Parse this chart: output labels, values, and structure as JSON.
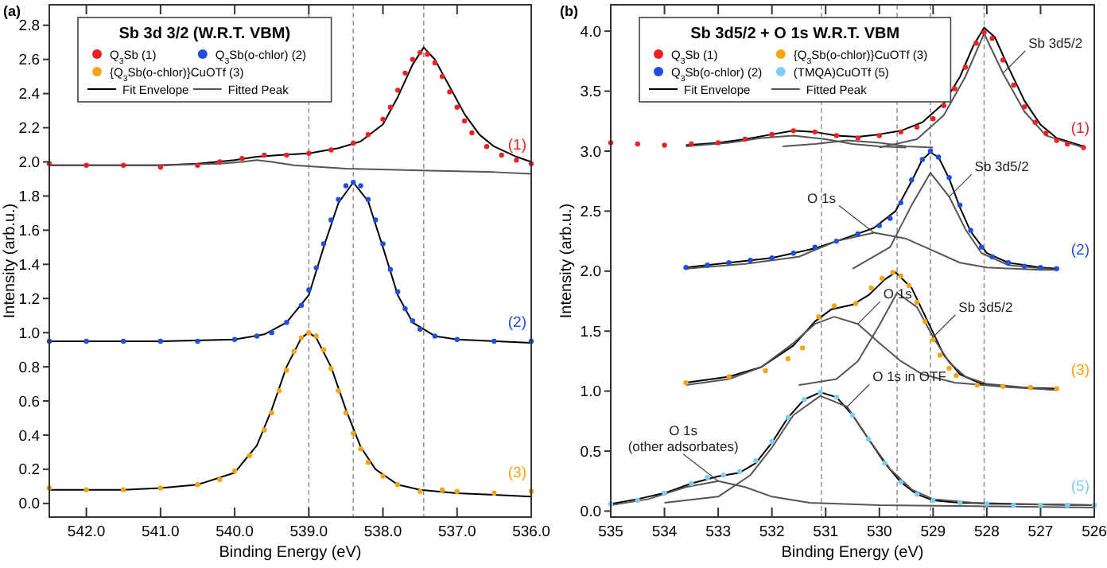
{
  "chart_data": [
    {
      "type": "scatter",
      "title": "(a)",
      "legend_title": "Sb 3d 3/2 (W.R.T. VBM)",
      "xlabel": "Binding Energy (eV)",
      "ylabel": "Intensity (arb.u.)",
      "xlim": [
        542.5,
        536.0
      ],
      "ylim": [
        -0.08,
        2.92
      ],
      "xticks": [
        {
          "value": 542,
          "label": "542.0"
        },
        {
          "value": 541,
          "label": "541.0"
        },
        {
          "value": 540,
          "label": "540.0"
        },
        {
          "value": 539,
          "label": "539.0"
        },
        {
          "value": 538,
          "label": "538.0"
        },
        {
          "value": 537,
          "label": "537.0"
        },
        {
          "value": 536,
          "label": "536.0"
        }
      ],
      "yticks": [
        {
          "value": 0,
          "label": "0.0"
        },
        {
          "value": 0.2,
          "label": "0.2"
        },
        {
          "value": 0.4,
          "label": "0.4"
        },
        {
          "value": 0.6,
          "label": "0.6"
        },
        {
          "value": 0.8,
          "label": "0.8"
        },
        {
          "value": 1,
          "label": "1.0"
        },
        {
          "value": 1.2,
          "label": "1.2"
        },
        {
          "value": 1.4,
          "label": "1.4"
        },
        {
          "value": 1.6,
          "label": "1.6"
        },
        {
          "value": 1.8,
          "label": "1.8"
        },
        {
          "value": 2,
          "label": "2.0"
        },
        {
          "value": 2.2,
          "label": "2.2"
        },
        {
          "value": 2.4,
          "label": "2.4"
        },
        {
          "value": 2.6,
          "label": "2.6"
        },
        {
          "value": 2.8,
          "label": "2.8"
        }
      ],
      "grid": false,
      "legend": "top left",
      "series": [
        {
          "name": "Q$_{3}$Sb (1)",
          "marker": "circle",
          "color": "#ee2222",
          "x": [
            542.5,
            542.0,
            541.5,
            541.0,
            540.5,
            540.2,
            539.9,
            539.6,
            539.3,
            539.0,
            538.7,
            538.4,
            538.2,
            538.0,
            537.9,
            537.8,
            537.7,
            537.6,
            537.5,
            537.4,
            537.3,
            537.2,
            537.1,
            537.0,
            536.9,
            536.8,
            536.6,
            536.4,
            536.2,
            536.0
          ],
          "values": [
            1.99,
            1.98,
            1.98,
            1.97,
            1.98,
            2.0,
            2.02,
            2.04,
            2.04,
            2.05,
            2.07,
            2.11,
            2.16,
            2.25,
            2.32,
            2.42,
            2.52,
            2.6,
            2.64,
            2.63,
            2.58,
            2.5,
            2.41,
            2.32,
            2.24,
            2.17,
            2.09,
            2.04,
            2.01,
            1.99
          ]
        },
        {
          "name": "Q$_{3}$Sb(o-chlor) (2)",
          "marker": "circle",
          "color": "#1f4fe0",
          "x": [
            542.5,
            542.0,
            541.5,
            541.0,
            540.5,
            540.0,
            539.7,
            539.5,
            539.3,
            539.1,
            539.0,
            538.9,
            538.8,
            538.7,
            538.6,
            538.5,
            538.4,
            538.3,
            538.2,
            538.1,
            538.0,
            537.9,
            537.8,
            537.7,
            537.6,
            537.5,
            537.3,
            537.0,
            536.5,
            536.0
          ],
          "values": [
            0.95,
            0.95,
            0.95,
            0.95,
            0.95,
            0.96,
            0.98,
            1.0,
            1.06,
            1.16,
            1.25,
            1.38,
            1.52,
            1.66,
            1.78,
            1.86,
            1.88,
            1.86,
            1.78,
            1.66,
            1.52,
            1.37,
            1.24,
            1.14,
            1.07,
            1.02,
            0.98,
            0.96,
            0.95,
            0.95
          ]
        },
        {
          "name": "{Q$_{3}$Sb(o-chlor)}CuOTf (3)",
          "marker": "circle",
          "color": "#f5a512",
          "x": [
            542.5,
            542.0,
            541.5,
            541.0,
            540.5,
            540.2,
            540.0,
            539.8,
            539.6,
            539.5,
            539.4,
            539.3,
            539.2,
            539.1,
            539.0,
            538.9,
            538.8,
            538.7,
            538.6,
            538.5,
            538.4,
            538.3,
            538.2,
            538.0,
            537.8,
            537.5,
            537.2,
            537.0,
            536.5,
            536.0
          ],
          "values": [
            0.09,
            0.08,
            0.08,
            0.09,
            0.11,
            0.14,
            0.19,
            0.28,
            0.43,
            0.53,
            0.66,
            0.78,
            0.89,
            0.97,
            1.0,
            0.98,
            0.9,
            0.79,
            0.66,
            0.53,
            0.41,
            0.32,
            0.24,
            0.16,
            0.11,
            0.07,
            0.08,
            0.07,
            0.06,
            0.07
          ]
        },
        {
          "name": "Fit Envelope",
          "type": "line",
          "color": "#000000",
          "x": [
            542.5,
            542,
            541.5,
            541,
            540.5,
            540,
            539.7,
            539.4,
            539,
            538.6,
            538.3,
            538.0,
            537.8,
            537.6,
            537.45,
            537.3,
            537.1,
            536.9,
            536.7,
            536.5,
            536.2,
            536.0
          ],
          "values": [
            1.98,
            1.98,
            1.98,
            1.98,
            1.99,
            2.01,
            2.03,
            2.04,
            2.05,
            2.08,
            2.12,
            2.22,
            2.38,
            2.57,
            2.67,
            2.6,
            2.44,
            2.28,
            2.16,
            2.09,
            2.03,
            2.0
          ]
        },
        {
          "name": "Fitted Peak",
          "type": "line",
          "color": "#555555",
          "x": [
            542.5,
            541,
            540.2,
            539.9,
            539.7,
            539.5,
            539.2,
            538.5,
            537.5,
            536.5,
            536
          ],
          "values": [
            1.98,
            1.98,
            1.99,
            2.0,
            2.01,
            2.0,
            1.98,
            1.96,
            1.95,
            1.94,
            1.93
          ]
        },
        {
          "type": "line",
          "color": "#000000",
          "x": [
            542.5,
            541,
            540,
            539.6,
            539.3,
            539.0,
            538.8,
            538.6,
            538.4,
            538.2,
            538.0,
            537.8,
            537.6,
            537.3,
            537,
            536
          ],
          "values": [
            0.95,
            0.95,
            0.96,
            0.99,
            1.06,
            1.22,
            1.5,
            1.76,
            1.88,
            1.77,
            1.5,
            1.22,
            1.06,
            0.98,
            0.96,
            0.94
          ]
        },
        {
          "type": "line",
          "color": "#000000",
          "x": [
            542.5,
            541.5,
            541,
            540.5,
            540.0,
            539.7,
            539.5,
            539.3,
            539.1,
            539.0,
            538.9,
            538.7,
            538.5,
            538.3,
            538.1,
            537.8,
            537.5,
            537,
            536.5,
            536
          ],
          "values": [
            0.08,
            0.08,
            0.09,
            0.11,
            0.18,
            0.34,
            0.55,
            0.8,
            0.97,
            1.0,
            0.97,
            0.8,
            0.55,
            0.33,
            0.2,
            0.11,
            0.08,
            0.06,
            0.05,
            0.04
          ]
        }
      ],
      "ref_lines": [
        {
          "axis": "x",
          "value": 537.45,
          "color": "#999999",
          "line_style": "dashed"
        },
        {
          "axis": "x",
          "value": 538.4,
          "color": "#999999",
          "line_style": "dashed"
        },
        {
          "axis": "x",
          "value": 539.0,
          "color": "#999999",
          "line_style": "dashed"
        }
      ],
      "annotations": [
        "(1)",
        "(2)",
        "(3)"
      ]
    },
    {
      "type": "scatter",
      "title": "(b)",
      "legend_title": "Sb 3d5/2 + O 1s W.R.T. VBM",
      "xlabel": "Binding Energy (eV)",
      "ylabel": "Intensity (arb.u.)",
      "xlim": [
        535,
        526
      ],
      "ylim": [
        -0.05,
        4.22
      ],
      "xticks": [
        535,
        534,
        533,
        532,
        531,
        530,
        529,
        528,
        527,
        526
      ],
      "yticks": [
        {
          "value": 0,
          "label": "0.0"
        },
        {
          "value": 0.5,
          "label": "0.5"
        },
        {
          "value": 1,
          "label": "1.0"
        },
        {
          "value": 1.5,
          "label": "1.5"
        },
        {
          "value": 2,
          "label": "2.0"
        },
        {
          "value": 2.5,
          "label": "2.5"
        },
        {
          "value": 3,
          "label": "3.0"
        },
        {
          "value": 3.5,
          "label": "3.5"
        },
        {
          "value": 4,
          "label": "4.0"
        }
      ],
      "grid": false,
      "legend": "top left",
      "series": [
        {
          "name": "Q$_{3}$Sb (1)",
          "marker": "circle",
          "color": "#ee2222",
          "x": [
            535,
            534.5,
            534,
            533.5,
            533,
            532.5,
            532,
            531.6,
            531.2,
            530.8,
            530.4,
            530.0,
            529.6,
            529.3,
            529.0,
            528.8,
            528.6,
            528.4,
            528.2,
            528.05,
            527.9,
            527.7,
            527.5,
            527.3,
            527.1,
            526.9,
            526.7,
            526.5,
            526.2
          ],
          "values": [
            3.07,
            3.06,
            3.05,
            3.06,
            3.07,
            3.1,
            3.14,
            3.17,
            3.16,
            3.13,
            3.11,
            3.13,
            3.16,
            3.2,
            3.27,
            3.38,
            3.52,
            3.7,
            3.9,
            3.99,
            3.94,
            3.76,
            3.55,
            3.37,
            3.24,
            3.15,
            3.09,
            3.06,
            3.03
          ]
        },
        {
          "name": "{Q$_{3}$Sb(o-chlor)}CuOTf (3)",
          "marker": "circle",
          "color": "#f5a512",
          "x": [
            533.6,
            532.8,
            532.12,
            531.7,
            531.43,
            531.13,
            530.84,
            530.44,
            530.15,
            529.95,
            529.75,
            529.6,
            529.45,
            529.3,
            529.15,
            529.0,
            528.87,
            528.7,
            528.57,
            528.18,
            527.7,
            527.19,
            526.7
          ],
          "values": [
            1.07,
            1.12,
            1.17,
            1.27,
            1.36,
            1.62,
            1.71,
            1.73,
            1.86,
            1.94,
            1.99,
            1.96,
            1.88,
            1.74,
            1.58,
            1.43,
            1.3,
            1.19,
            1.13,
            1.05,
            1.04,
            1.03,
            1.02
          ]
        },
        {
          "name": "Q$_{3}$Sb(o-chlor) (2)",
          "marker": "circle",
          "color": "#1f4fe0",
          "x": [
            533.6,
            533.2,
            532.8,
            532.4,
            532.0,
            531.6,
            531.2,
            530.8,
            530.4,
            530.0,
            529.8,
            529.6,
            529.4,
            529.2,
            529.05,
            528.9,
            528.7,
            528.5,
            528.3,
            528.1,
            527.9,
            527.6,
            527.3,
            527.0,
            526.7
          ],
          "values": [
            2.03,
            2.05,
            2.07,
            2.09,
            2.11,
            2.15,
            2.2,
            2.25,
            2.31,
            2.38,
            2.44,
            2.57,
            2.76,
            2.93,
            3.0,
            2.95,
            2.78,
            2.55,
            2.34,
            2.2,
            2.12,
            2.07,
            2.04,
            2.03,
            2.02
          ]
        },
        {
          "name": "(TMQA)CuOTf (5)",
          "marker": "circle",
          "color": "#7ccff2",
          "x": [
            535,
            534.5,
            534.0,
            533.5,
            533.2,
            532.9,
            532.6,
            532.3,
            532.0,
            531.7,
            531.4,
            531.1,
            530.8,
            530.5,
            530.2,
            529.9,
            529.6,
            529.3,
            529.0,
            528.5,
            528,
            527.5,
            527,
            526.5,
            526.0
          ],
          "values": [
            0.06,
            0.09,
            0.15,
            0.23,
            0.28,
            0.3,
            0.33,
            0.42,
            0.58,
            0.78,
            0.93,
            0.99,
            0.95,
            0.8,
            0.6,
            0.4,
            0.24,
            0.14,
            0.09,
            0.07,
            0.06,
            0.05,
            0.05,
            0.05,
            0.05
          ]
        },
        {
          "name": "Fit Envelope",
          "type": "line",
          "color": "#000000",
          "x": [
            533.6,
            533,
            532.5,
            532,
            531.6,
            531.2,
            530.8,
            530.4,
            530,
            529.6,
            529.2,
            528.8,
            528.5,
            528.25,
            528.05,
            527.85,
            527.6,
            527.3,
            527,
            526.7,
            526.2
          ],
          "values": [
            3.05,
            3.07,
            3.1,
            3.14,
            3.17,
            3.16,
            3.13,
            3.12,
            3.14,
            3.17,
            3.24,
            3.4,
            3.62,
            3.88,
            4.03,
            3.95,
            3.7,
            3.42,
            3.22,
            3.11,
            3.04
          ]
        },
        {
          "name": "Fitted Peak",
          "type": "line",
          "color": "#555555",
          "x": [
            533.6,
            532.8,
            532.2,
            531.6,
            531.0,
            530.5,
            530,
            529.5
          ],
          "values": [
            3.04,
            3.07,
            3.11,
            3.13,
            3.1,
            3.06,
            3.04,
            3.03
          ]
        },
        {
          "type": "line",
          "color": "#555555",
          "x": [
            531.8,
            531.2,
            530.6,
            530.0,
            529.5,
            529
          ],
          "values": [
            3.04,
            3.06,
            3.09,
            3.07,
            3.04,
            3.03
          ]
        },
        {
          "type": "line",
          "color": "#555555",
          "x": [
            530,
            529.3,
            528.8,
            528.4,
            528.05,
            527.7,
            527.3,
            526.9,
            526.2
          ],
          "values": [
            3.03,
            3.1,
            3.3,
            3.62,
            3.98,
            3.65,
            3.33,
            3.13,
            3.03
          ]
        },
        {
          "type": "line",
          "color": "#000000",
          "x": [
            533.6,
            532.8,
            532,
            531.2,
            530.6,
            530.1,
            529.7,
            529.4,
            529.2,
            529.05,
            528.9,
            528.7,
            528.5,
            528.3,
            528,
            527.6,
            527,
            526.7
          ],
          "values": [
            2.03,
            2.07,
            2.11,
            2.19,
            2.28,
            2.36,
            2.5,
            2.75,
            2.93,
            2.99,
            2.95,
            2.77,
            2.53,
            2.33,
            2.15,
            2.07,
            2.03,
            2.02
          ]
        },
        {
          "type": "line",
          "color": "#555555",
          "x": [
            533.6,
            532.5,
            531.5,
            530.8,
            530.1,
            529.5,
            529.0,
            528.5,
            528,
            527,
            526.7
          ],
          "values": [
            2.02,
            2.06,
            2.12,
            2.25,
            2.32,
            2.27,
            2.17,
            2.07,
            2.03,
            2.01,
            2.01
          ]
        },
        {
          "type": "line",
          "color": "#555555",
          "x": [
            530.5,
            529.8,
            529.4,
            529.05,
            528.7,
            528.4,
            528.1,
            527.6,
            526.7
          ],
          "values": [
            2.02,
            2.2,
            2.55,
            2.82,
            2.62,
            2.35,
            2.15,
            2.05,
            2.01
          ]
        },
        {
          "type": "line",
          "color": "#000000",
          "x": [
            533.6,
            532.8,
            532.2,
            531.6,
            531.2,
            530.9,
            530.5,
            530.2,
            529.9,
            529.7,
            529.4,
            529.1,
            528.8,
            528.5,
            528.1,
            527.5,
            526.7
          ],
          "values": [
            1.07,
            1.12,
            1.2,
            1.38,
            1.58,
            1.68,
            1.72,
            1.8,
            1.93,
            1.99,
            1.86,
            1.58,
            1.3,
            1.14,
            1.06,
            1.03,
            1.02
          ]
        },
        {
          "type": "line",
          "color": "#555555",
          "x": [
            533.6,
            532.8,
            532.2,
            531.6,
            531.2,
            530.84,
            530.4,
            530.0,
            529.6,
            529.2,
            528.6,
            527.5,
            526.7
          ],
          "values": [
            1.05,
            1.1,
            1.2,
            1.4,
            1.56,
            1.62,
            1.56,
            1.4,
            1.25,
            1.14,
            1.07,
            1.03,
            1.01
          ]
        },
        {
          "type": "line",
          "color": "#555555",
          "x": [
            531.5,
            530.8,
            530.4,
            530.0,
            529.67,
            529.3,
            529.0,
            528.7,
            528.4,
            528.0,
            527.3,
            526.7
          ],
          "values": [
            1.05,
            1.1,
            1.25,
            1.55,
            1.82,
            1.7,
            1.45,
            1.24,
            1.12,
            1.06,
            1.03,
            1.01
          ]
        },
        {
          "type": "line",
          "color": "#000000",
          "x": [
            535,
            534.5,
            534,
            533.5,
            533,
            532.6,
            532.3,
            532,
            531.7,
            531.4,
            531.1,
            530.8,
            530.5,
            530.2,
            529.9,
            529.6,
            529.3,
            529,
            528.5,
            527.5,
            526
          ],
          "values": [
            0.06,
            0.1,
            0.15,
            0.23,
            0.29,
            0.32,
            0.4,
            0.57,
            0.78,
            0.93,
            0.99,
            0.95,
            0.8,
            0.6,
            0.4,
            0.24,
            0.14,
            0.09,
            0.07,
            0.06,
            0.05
          ]
        },
        {
          "type": "line",
          "color": "#555555",
          "x": [
            535,
            534.3,
            533.6,
            533.0,
            532.5,
            532.0,
            531.3,
            530,
            526
          ],
          "values": [
            0.05,
            0.1,
            0.2,
            0.25,
            0.2,
            0.12,
            0.07,
            0.05,
            0.03
          ]
        },
        {
          "type": "line",
          "color": "#555555",
          "x": [
            534,
            533,
            532.4,
            532.0,
            531.6,
            531.1,
            530.6,
            530.2,
            529.8,
            529.4,
            529,
            528,
            526
          ],
          "values": [
            0.07,
            0.12,
            0.3,
            0.53,
            0.8,
            0.96,
            0.87,
            0.6,
            0.35,
            0.18,
            0.1,
            0.06,
            0.05
          ]
        }
      ],
      "ref_lines": [
        {
          "axis": "x",
          "value": 528.05,
          "color": "#999999",
          "line_style": "dashed"
        },
        {
          "axis": "x",
          "value": 529.05,
          "color": "#999999",
          "line_style": "dashed"
        },
        {
          "axis": "x",
          "value": 529.67,
          "color": "#999999",
          "line_style": "dashed"
        },
        {
          "axis": "x",
          "value": 531.08,
          "color": "#999999",
          "line_style": "dashed"
        }
      ],
      "annotations": [
        "(1)",
        "(3)",
        "(2)",
        "(5)",
        {
          "text": "Sb 3d5/2",
          "x": 527.7,
          "y": 3.65
        },
        {
          "text": "Sb 3d5/2",
          "x": 528.7,
          "y": 2.62
        },
        {
          "text": "O 1s",
          "x": 530.1,
          "y": 2.32
        },
        {
          "text": "O 1s",
          "x": 530.4,
          "y": 1.56
        },
        {
          "text": "Sb 3d5/2",
          "x": 529.0,
          "y": 1.45
        },
        {
          "text": "O 1s in OTF",
          "x": 530.6,
          "y": 0.87
        },
        {
          "text": "O 1s\n(other adsorbates)",
          "x": 533.0,
          "y": 0.25
        }
      ]
    }
  ]
}
